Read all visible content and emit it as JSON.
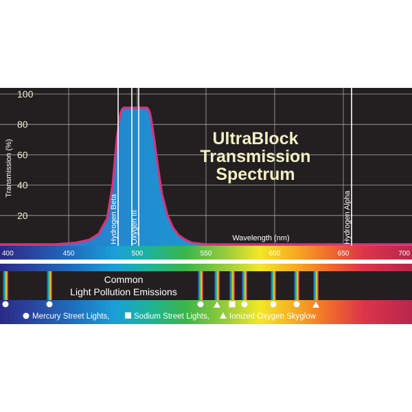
{
  "chart_data": {
    "type": "area",
    "title": [
      "UltraBlock",
      "Transmission",
      "Spectrum"
    ],
    "ylabel": "Transmission (%)",
    "xlabel": "Wavelength (nm)",
    "xlim": [
      400,
      700
    ],
    "ylim": [
      0,
      100
    ],
    "yticks": [
      20,
      40,
      60,
      80,
      100
    ],
    "xticks": [
      400,
      450,
      500,
      550,
      600,
      650,
      700
    ],
    "grid": true,
    "series": [
      {
        "x": [
          400,
          420,
          440,
          455,
          465,
          472,
          478,
          482,
          485,
          487,
          488,
          489,
          490,
          492,
          495,
          500,
          505,
          507,
          508,
          509,
          510,
          512,
          515,
          518,
          522,
          526,
          530,
          535,
          540,
          550,
          560,
          580,
          600,
          620,
          640,
          660,
          680,
          700
        ],
        "values": [
          1,
          1,
          1,
          2,
          4,
          8,
          18,
          40,
          70,
          84,
          88,
          90,
          91,
          91,
          91,
          91,
          91,
          91,
          90,
          88,
          84,
          72,
          52,
          34,
          20,
          12,
          7,
          4,
          2,
          1,
          1,
          1,
          1,
          1,
          1,
          1,
          1,
          1
        ]
      }
    ],
    "spectral_lines": [
      {
        "label": "Hydrogen Beta",
        "wavelength": 486
      },
      {
        "label": "",
        "wavelength": 496
      },
      {
        "label": "Oxygen III",
        "wavelength": 501
      },
      {
        "label": "Hydrogen Alpha",
        "wavelength": 656
      }
    ],
    "emissions_title": [
      "Common",
      "Light Pollution Emissions"
    ],
    "emission_lines": [
      {
        "wavelength": 404,
        "marker": "circle"
      },
      {
        "wavelength": 436,
        "marker": "circle"
      },
      {
        "wavelength": 546,
        "marker": "circle"
      },
      {
        "wavelength": 558,
        "marker": "triangle"
      },
      {
        "wavelength": 569,
        "marker": "square"
      },
      {
        "wavelength": 578,
        "marker": "circle"
      },
      {
        "wavelength": 599,
        "marker": "circle"
      },
      {
        "wavelength": 616,
        "marker": "circle"
      },
      {
        "wavelength": 630,
        "marker": "triangle"
      }
    ],
    "legend": [
      {
        "marker": "circle",
        "label": "Mercury Street Lights,"
      },
      {
        "marker": "square",
        "label": "Sodium Street Lights,"
      },
      {
        "marker": "triangle",
        "label": "Ionized Oxygen Skyglow"
      }
    ],
    "colors": {
      "background": "#231f20",
      "grid": "#a9a9a9",
      "curve_stroke": "#d6337f",
      "curve_fill_left": "#2f6fce",
      "curve_fill_right": "#0fb7a3",
      "spectral_line": "#ffffff",
      "title": "#f3efc4"
    }
  }
}
